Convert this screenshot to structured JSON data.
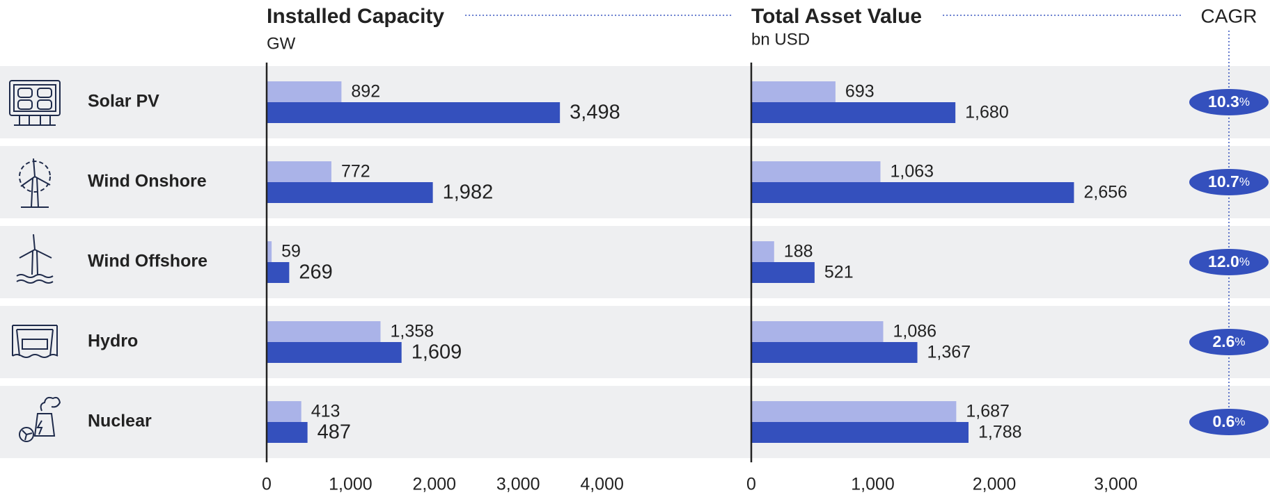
{
  "categories": [
    "Solar PV",
    "Wind Onshore",
    "Wind Offshore",
    "Hydro",
    "Nuclear"
  ],
  "chart_data": [
    {
      "type": "bar",
      "orientation": "horizontal",
      "title": "Installed Capacity",
      "subtitle": "GW",
      "series": [
        {
          "color": "#aab3e8",
          "values": [
            892,
            772,
            59,
            1358,
            413
          ],
          "value_labels": [
            "892",
            "772",
            "59",
            "1,358",
            "413"
          ]
        },
        {
          "color": "#3450bd",
          "values": [
            3498,
            1982,
            269,
            1609,
            487
          ],
          "value_labels": [
            "3,498",
            "1,982",
            "269",
            "1,609",
            "487"
          ]
        }
      ],
      "xlim": [
        0,
        4000
      ],
      "xticks": [
        0,
        {
          "value": 1000,
          "label": "1,000"
        },
        {
          "value": 2000,
          "label": "2,000"
        },
        {
          "value": 3000,
          "label": "3,000"
        },
        {
          "value": 4000,
          "label": "4,000"
        }
      ]
    },
    {
      "type": "bar",
      "orientation": "horizontal",
      "title": "Total Asset Value",
      "subtitle": "bn USD",
      "series": [
        {
          "color": "#aab3e8",
          "values": [
            693,
            1063,
            188,
            1086,
            1687
          ],
          "value_labels": [
            "693",
            "1,063",
            "188",
            "1,086",
            "1,687"
          ]
        },
        {
          "color": "#3450bd",
          "values": [
            1680,
            2656,
            521,
            1367,
            1788
          ],
          "value_labels": [
            "1,680",
            "2,656",
            "521",
            "1,367",
            "1,788"
          ]
        }
      ],
      "xlim": [
        0,
        3000
      ],
      "xticks": [
        0,
        {
          "value": 1000,
          "label": "1,000"
        },
        {
          "value": 2000,
          "label": "2,000"
        },
        {
          "value": 3000,
          "label": "3,000"
        }
      ]
    }
  ],
  "cagr": {
    "title": "CAGR",
    "color": "#3450bd",
    "values": [
      10.3,
      10.7,
      12.0,
      2.6,
      0.6
    ],
    "value_labels": [
      "10.3%",
      "10.7%",
      "12.0%",
      "2.6%",
      "0.6%"
    ]
  }
}
